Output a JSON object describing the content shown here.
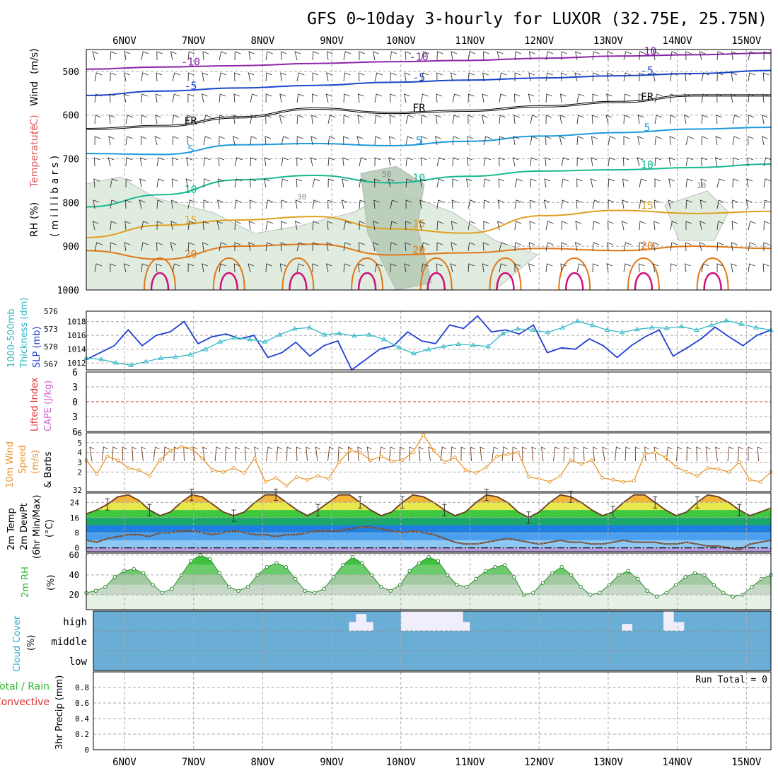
{
  "title": "GFS 0~10day 3-hourly for LUXOR (32.75E, 25.75N)",
  "days": [
    "6NOV",
    "7NOV",
    "8NOV",
    "9NOV",
    "10NOV",
    "11NOV",
    "12NOV",
    "13NOV",
    "14NOV",
    "15NOV"
  ],
  "colors": {
    "frame": "#000000",
    "grid": "#aaaaaa",
    "slp": "#1f3fd0",
    "thickness": "#33b8c8",
    "wind10m": "#e8962e",
    "barb": "#6b3a1f",
    "rh_fill": "#6fbf6f",
    "rh_line": "#2e8b2e",
    "cloud": "#6aaed6",
    "cloud_clear": "#f0eefa",
    "li_zero": "#e03030"
  },
  "chart_data": [
    {
      "type": "contour",
      "panel": "upper-air",
      "ylabel_parts": [
        "Wind",
        "(m/s)",
        "Temperature",
        "(°C)",
        "RH",
        "(%)"
      ],
      "ylabel_unit": "( m i l l i b a r s )",
      "yticks": [
        500,
        600,
        700,
        800,
        900,
        1000
      ],
      "ylim": [
        450,
        1000
      ],
      "isotherms": [
        {
          "label": "-10",
          "color": "#8e24aa",
          "p": [
            495,
            490,
            487,
            482,
            478,
            475,
            470,
            465,
            462,
            458
          ]
        },
        {
          "label": "-5",
          "color": "#1a47cc",
          "p": [
            555,
            545,
            538,
            532,
            525,
            520,
            515,
            510,
            505,
            498
          ]
        },
        {
          "label": "FR",
          "color": "#000000",
          "p": [
            632,
            625,
            605,
            585,
            595,
            590,
            580,
            570,
            555,
            555
          ]
        },
        {
          "label": "5",
          "color": "#1e9be0",
          "p": [
            688,
            690,
            668,
            665,
            670,
            660,
            648,
            640,
            632,
            628
          ]
        },
        {
          "label": "10",
          "color": "#18b890",
          "p": [
            810,
            782,
            748,
            738,
            755,
            740,
            728,
            725,
            720,
            712
          ]
        },
        {
          "label": "15",
          "color": "#e0a020",
          "p": [
            880,
            852,
            840,
            832,
            860,
            870,
            830,
            818,
            825,
            820
          ]
        },
        {
          "label": "20",
          "color": "#e07818",
          "p": [
            910,
            930,
            900,
            895,
            920,
            915,
            905,
            910,
            900,
            905
          ]
        }
      ],
      "rh_labels": [
        "10",
        "30",
        "50"
      ]
    },
    {
      "type": "line",
      "panel": "thickness-slp",
      "ylabel": [
        "1000-500mb",
        "Thickness (dm)",
        "SLP (mb)"
      ],
      "left_ticks": [
        567,
        570,
        573,
        576
      ],
      "right_ticks": [
        1012,
        1014,
        1016,
        1018
      ],
      "series": [
        {
          "name": "SLP",
          "axis": "right",
          "ylim": [
            1011,
            1019.5
          ],
          "values": [
            1012.5,
            1013.5,
            1014.5,
            1016.8,
            1014.5,
            1016.0,
            1016.5,
            1018.0,
            1014.8,
            1015.8,
            1016.2,
            1015.5,
            1016.0,
            1012.8,
            1013.5,
            1015.0,
            1013.0,
            1014.5,
            1015.2,
            1011.0,
            1012.5,
            1014.0,
            1014.5,
            1016.5,
            1015.2,
            1014.8,
            1017.5,
            1017.0,
            1018.8,
            1016.5,
            1016.8,
            1016.2,
            1017.5,
            1013.5,
            1014.2,
            1014.0,
            1015.5,
            1014.5,
            1012.8,
            1014.5,
            1015.8,
            1016.8,
            1013.0,
            1014.2,
            1015.5,
            1017.2,
            1015.8,
            1014.5,
            1016.0,
            1016.8
          ]
        },
        {
          "name": "Thickness",
          "axis": "left",
          "ylim": [
            566,
            576
          ],
          "values": [
            568,
            567.8,
            567.2,
            566.8,
            567.4,
            568.0,
            568.2,
            568.6,
            569.5,
            570.8,
            571.5,
            571.2,
            570.8,
            572.0,
            573.0,
            573.2,
            572.0,
            572.2,
            571.8,
            572.0,
            571.2,
            569.8,
            568.8,
            569.5,
            570.0,
            570.4,
            570.2,
            570.0,
            572.2,
            573.0,
            572.8,
            572.4,
            573.2,
            574.3,
            573.6,
            572.8,
            572.4,
            572.9,
            573.2,
            573.1,
            573.4,
            572.8,
            573.6,
            574.4,
            573.8,
            573.2,
            572.8
          ]
        }
      ]
    },
    {
      "type": "line",
      "panel": "li-cape",
      "ylabel": [
        "Lifted Index",
        "CAPE (J/kg)"
      ],
      "yticks": [
        "6",
        "3",
        "0",
        "3",
        "6"
      ],
      "ylim": [
        -6,
        6
      ],
      "series": [
        {
          "name": "Lifted Index",
          "values": []
        }
      ]
    },
    {
      "type": "line",
      "panel": "wind10m",
      "ylabel": [
        "10m Wind",
        "Speed",
        "(m/s)",
        "& Barbs"
      ],
      "yticks": [
        2,
        3,
        4,
        5,
        6
      ],
      "bottom_tick": "32",
      "ylim": [
        0,
        6
      ],
      "series": [
        {
          "name": "Speed",
          "values": [
            3.2,
            1.8,
            3.6,
            3.2,
            2.4,
            2.2,
            1.6,
            3.2,
            4.2,
            4.6,
            4.4,
            3.4,
            2.2,
            2.0,
            2.4,
            1.9,
            3.4,
            1.0,
            1.4,
            0.6,
            1.5,
            1.2,
            1.6,
            1.3,
            3.0,
            4.2,
            4.0,
            3.2,
            3.6,
            3.1,
            3.2,
            4.0,
            5.8,
            4.2,
            3.0,
            3.5,
            2.2,
            1.9,
            2.5,
            3.6,
            3.8,
            4.0,
            1.5,
            1.3,
            1.0,
            1.6,
            3.2,
            2.8,
            3.2,
            1.4,
            1.2,
            1.0,
            1.1,
            3.8,
            4.0,
            3.5,
            2.5,
            2.0,
            1.6,
            2.4,
            2.3,
            2.0,
            3.0,
            1.2,
            1.0,
            2.0
          ]
        }
      ]
    },
    {
      "type": "line",
      "panel": "temp2m",
      "ylabel": [
        "2m Temp",
        "2m DewPt",
        "(6hr Min/Max)",
        "(°C)"
      ],
      "yticks": [
        0,
        8,
        16,
        24
      ],
      "ylim": [
        -2,
        29
      ],
      "series": [
        {
          "name": "2m Temp",
          "values": [
            18,
            20,
            23,
            27,
            28,
            25,
            20,
            17,
            19,
            24,
            28,
            27,
            23,
            19,
            17,
            19,
            24,
            28,
            28,
            24,
            20,
            17,
            20,
            24,
            28,
            28,
            24,
            20,
            17,
            19,
            24,
            28,
            27,
            24,
            20,
            17,
            19,
            24,
            28,
            27,
            24,
            19,
            16,
            19,
            24,
            28,
            27,
            24,
            20,
            17,
            19,
            24,
            28,
            28,
            24,
            20,
            17,
            19,
            24,
            28,
            27,
            24,
            20,
            17,
            19,
            21
          ]
        },
        {
          "name": "2m DewPt",
          "values": [
            4,
            3,
            5,
            6,
            7,
            7,
            6,
            8,
            8,
            9,
            9,
            8,
            7,
            8,
            9,
            8,
            7,
            7,
            6,
            7,
            7,
            8,
            9,
            9,
            9,
            10,
            11,
            11,
            10,
            9,
            8,
            9,
            8,
            7,
            5,
            3,
            2,
            2,
            3,
            4,
            5,
            4,
            3,
            2,
            3,
            4,
            3,
            3,
            2,
            2,
            3,
            4,
            3,
            3,
            3,
            2,
            2,
            3,
            2,
            1,
            1,
            0,
            -1,
            2,
            3,
            4
          ]
        }
      ]
    },
    {
      "type": "area",
      "panel": "rh2m",
      "ylabel": [
        "2m RH",
        "(%)"
      ],
      "yticks": [
        20,
        40,
        60
      ],
      "ylim": [
        5,
        62
      ],
      "series": [
        {
          "name": "2m RH",
          "values": [
            22,
            24,
            28,
            38,
            44,
            46,
            42,
            30,
            22,
            26,
            40,
            54,
            60,
            56,
            42,
            28,
            24,
            28,
            40,
            48,
            52,
            48,
            36,
            24,
            22,
            26,
            38,
            50,
            58,
            52,
            40,
            28,
            24,
            30,
            44,
            52,
            58,
            54,
            40,
            30,
            28,
            36,
            44,
            48,
            50,
            38,
            20,
            22,
            32,
            42,
            48,
            40,
            28,
            20,
            22,
            30,
            40,
            44,
            36,
            24,
            18,
            22,
            30,
            38,
            42,
            40,
            30,
            22,
            18,
            20,
            28,
            36,
            40
          ]
        }
      ]
    },
    {
      "type": "bar",
      "panel": "cloud",
      "ylabel": [
        "Cloud Cover",
        "(%)"
      ],
      "levels": [
        "high",
        "middle",
        "low"
      ],
      "clear_spans": [
        {
          "level": "high",
          "start_day": 3.25,
          "end_day": 3.6,
          "depth": 0.45
        },
        {
          "level": "high",
          "start_day": 3.35,
          "end_day": 3.5,
          "depth": 0.85
        },
        {
          "level": "high",
          "start_day": 4.0,
          "end_day": 4.9,
          "depth": 1.0
        },
        {
          "level": "high",
          "start_day": 4.9,
          "end_day": 5.0,
          "depth": 0.45
        },
        {
          "level": "high",
          "start_day": 7.2,
          "end_day": 7.35,
          "depth": 0.35
        },
        {
          "level": "high",
          "start_day": 7.8,
          "end_day": 7.95,
          "depth": 1.0
        },
        {
          "level": "high",
          "start_day": 7.95,
          "end_day": 8.1,
          "depth": 0.45
        }
      ]
    },
    {
      "type": "bar",
      "panel": "precip",
      "ylabel": [
        "Total / Rain",
        "Convective",
        "3hr Precip (mm)"
      ],
      "yticks": [
        "0",
        "0.2",
        "0.4",
        "0.6",
        "0.8"
      ],
      "ylim": [
        0,
        1
      ],
      "annotation": "Run Total = 0",
      "series": [
        {
          "name": "3hr Precip",
          "values": []
        }
      ]
    }
  ]
}
